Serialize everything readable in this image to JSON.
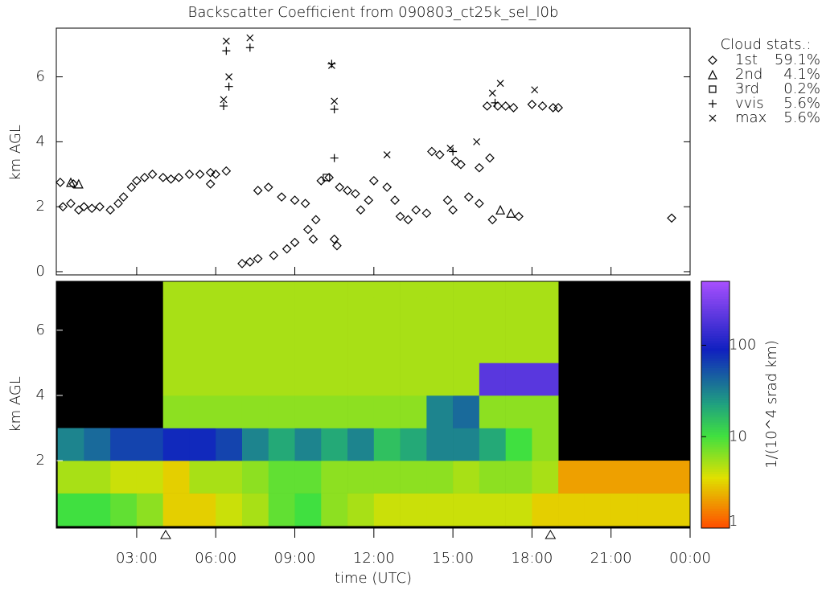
{
  "chart_data": [
    {
      "type": "scatter",
      "title": "Backscatter Coefficient from 090803_ct25k_sel_l0b",
      "y_label": "km AGL",
      "legend_title": "Cloud stats.:",
      "xlim": [
        -0.05,
        24
      ],
      "ylim": [
        -0.1,
        7.5
      ],
      "yticks": [
        0,
        2,
        4,
        6
      ],
      "series": [
        {
          "name": "1st",
          "stat": "59.1%",
          "marker": "diamond",
          "color": "#000000",
          "x": [
            0.1,
            0.6,
            0.2,
            0.5,
            0.8,
            1.0,
            1.3,
            1.6,
            2.0,
            2.3,
            2.5,
            2.8,
            3.0,
            3.3,
            3.6,
            4.0,
            4.3,
            4.6,
            5.0,
            5.4,
            5.8,
            6.0,
            5.8,
            6.4,
            7.0,
            7.3,
            7.6,
            7.6,
            8.0,
            8.2,
            8.5,
            8.7,
            9.0,
            9.0,
            9.4,
            9.5,
            9.7,
            9.8,
            10.0,
            10.3,
            10.5,
            10.6,
            10.7,
            11.0,
            11.3,
            11.5,
            11.8,
            12.0,
            12.5,
            12.8,
            13.0,
            13.3,
            13.6,
            14.0,
            14.2,
            14.5,
            14.8,
            15.0,
            15.1,
            15.3,
            15.6,
            16.0,
            16.0,
            16.3,
            16.4,
            16.5,
            16.7,
            17.0,
            17.3,
            17.5,
            18.0,
            18.4,
            18.8,
            19.0,
            23.3
          ],
          "values": [
            2.75,
            2.7,
            2.0,
            2.1,
            1.9,
            2.0,
            1.95,
            2.0,
            1.9,
            2.1,
            2.3,
            2.6,
            2.8,
            2.9,
            3.0,
            2.9,
            2.85,
            2.9,
            3.0,
            3.0,
            3.05,
            3.0,
            2.7,
            3.1,
            0.25,
            0.3,
            0.4,
            2.5,
            2.6,
            0.5,
            2.3,
            0.7,
            2.2,
            0.9,
            2.1,
            1.3,
            1.0,
            1.6,
            2.8,
            2.9,
            1.0,
            0.8,
            2.6,
            2.5,
            2.4,
            1.9,
            2.2,
            2.8,
            2.6,
            2.2,
            1.7,
            1.6,
            1.9,
            1.8,
            3.7,
            3.6,
            2.2,
            1.9,
            3.4,
            3.3,
            2.3,
            2.1,
            3.2,
            5.1,
            3.5,
            1.6,
            5.1,
            5.1,
            5.05,
            1.7,
            5.15,
            5.1,
            5.05,
            5.05,
            1.65
          ]
        },
        {
          "name": "2nd",
          "stat": "4.1%",
          "marker": "triangle",
          "color": "#000000",
          "x": [
            0.5,
            0.8,
            16.8,
            17.2
          ],
          "values": [
            2.75,
            2.7,
            1.9,
            1.8
          ]
        },
        {
          "name": "3rd",
          "stat": "0.2%",
          "marker": "square",
          "color": "#000000",
          "x": [
            10.2
          ],
          "values": [
            2.9
          ]
        },
        {
          "name": "vvis",
          "stat": "5.6%",
          "marker": "plus",
          "color": "#000000",
          "x": [
            6.3,
            6.4,
            6.5,
            7.3,
            10.4,
            10.5,
            10.5,
            16.6,
            15.0
          ],
          "values": [
            5.1,
            6.8,
            5.7,
            6.9,
            6.4,
            5.0,
            3.5,
            5.2,
            3.7
          ]
        },
        {
          "name": "max",
          "stat": "5.6%",
          "marker": "cross",
          "color": "#000000",
          "x": [
            6.3,
            6.4,
            6.5,
            7.3,
            10.4,
            10.5,
            12.5,
            14.9,
            16.5,
            16.8,
            18.1,
            15.9
          ],
          "values": [
            5.3,
            7.1,
            6.0,
            7.2,
            6.35,
            5.25,
            3.6,
            3.8,
            5.5,
            5.8,
            5.6,
            4.0
          ]
        }
      ]
    },
    {
      "type": "heatmap",
      "y_label": "km AGL",
      "x_label": "time (UTC)",
      "xlim": [
        -0.05,
        24
      ],
      "ylim": [
        -0.07,
        7.5
      ],
      "xticks": [
        {
          "value": 3,
          "label": "03:00"
        },
        {
          "value": 6,
          "label": "06:00"
        },
        {
          "value": 9,
          "label": "09:00"
        },
        {
          "value": 12,
          "label": "12:00"
        },
        {
          "value": 15,
          "label": "15:00"
        },
        {
          "value": 18,
          "label": "18:00"
        },
        {
          "value": 21,
          "label": "21:00"
        },
        {
          "value": 24,
          "label": "00:00"
        }
      ],
      "yticks": [
        2,
        4,
        6
      ],
      "x_bins": [
        0,
        1,
        2,
        3,
        4,
        5,
        6,
        7,
        8,
        9,
        10,
        11,
        12,
        13,
        14,
        15,
        16,
        17,
        18,
        19,
        20,
        21,
        22,
        23,
        24
      ],
      "y_bins": [
        0,
        1,
        2,
        3,
        4,
        5,
        6,
        7,
        8
      ],
      "values": [
        [
          10,
          10,
          8,
          6,
          3,
          3,
          4,
          5,
          8,
          10,
          6,
          5,
          4,
          4,
          4,
          4,
          4,
          4,
          3,
          3,
          3,
          3,
          3,
          3
        ],
        [
          5,
          5,
          4,
          4,
          3,
          5,
          5,
          6,
          8,
          8,
          6,
          6,
          6,
          6,
          6,
          5,
          6,
          6,
          5,
          2,
          2,
          2,
          2,
          2
        ],
        [
          30,
          40,
          60,
          60,
          80,
          80,
          60,
          30,
          20,
          30,
          20,
          30,
          15,
          20,
          30,
          30,
          20,
          10,
          6,
          null,
          null,
          null,
          null,
          null
        ],
        [
          null,
          null,
          null,
          null,
          6,
          6,
          6,
          6,
          6,
          6,
          6,
          6,
          6,
          6,
          30,
          40,
          6,
          6,
          6,
          null,
          null,
          null,
          null,
          null
        ],
        [
          null,
          null,
          null,
          null,
          5,
          5,
          5,
          5,
          5,
          5,
          5,
          5,
          5,
          5,
          5,
          5,
          200,
          200,
          200,
          null,
          null,
          null,
          null,
          null
        ],
        [
          null,
          null,
          null,
          null,
          5,
          5,
          5,
          5,
          5,
          5,
          5,
          5,
          5,
          5,
          5,
          5,
          5,
          5,
          5,
          null,
          null,
          null,
          null,
          null
        ],
        [
          null,
          null,
          null,
          null,
          5,
          5,
          5,
          5,
          5,
          5,
          5,
          5,
          5,
          5,
          5,
          5,
          5,
          5,
          5,
          null,
          null,
          null,
          null,
          null
        ],
        [
          null,
          null,
          null,
          null,
          5,
          5,
          5,
          5,
          5,
          5,
          5,
          5,
          5,
          5,
          5,
          5,
          5,
          5,
          5,
          null,
          null,
          null,
          null,
          null
        ]
      ],
      "sun_markers": [
        4.1,
        18.7
      ],
      "colorbar": {
        "label": "1/(10^4 srad km)",
        "lim": [
          1,
          500
        ],
        "ticks": [
          1,
          10,
          100
        ],
        "log": true
      }
    }
  ]
}
